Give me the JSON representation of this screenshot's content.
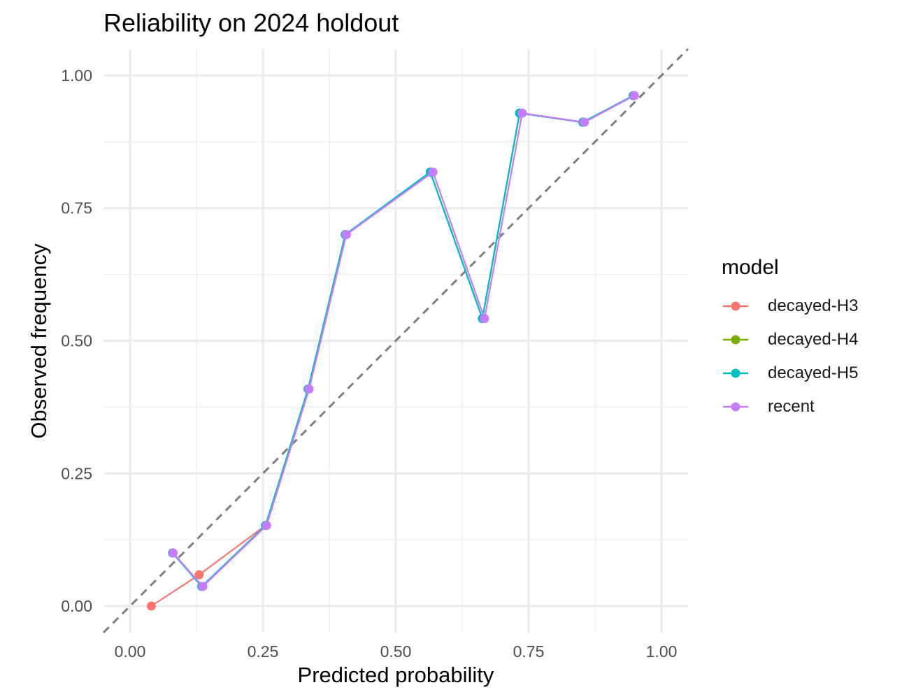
{
  "chart_data": {
    "type": "line",
    "title": "Reliability on 2024 holdout",
    "xlabel": "Predicted probability",
    "ylabel": "Observed frequency",
    "xlim": [
      -0.05,
      1.05
    ],
    "ylim": [
      -0.05,
      1.05
    ],
    "x_ticks": [
      "0.00",
      "0.25",
      "0.50",
      "0.75",
      "1.00"
    ],
    "y_ticks": [
      "0.00",
      "0.25",
      "0.50",
      "0.75",
      "1.00"
    ],
    "grid": true,
    "reference_line": {
      "style": "dashed",
      "color": "#7f7f7f",
      "x": [
        -0.05,
        1.05
      ],
      "y": [
        -0.05,
        1.05
      ]
    },
    "legend": {
      "title": "model",
      "position": "right"
    },
    "series": [
      {
        "name": "decayed-H3",
        "color": "#F8766D",
        "x": [
          0.04,
          0.13,
          0.255,
          0.335,
          0.405,
          0.565,
          0.663,
          0.733,
          0.852,
          0.947
        ],
        "y": [
          0.0,
          0.059,
          0.152,
          0.409,
          0.7,
          0.818,
          0.542,
          0.929,
          0.912,
          0.962
        ]
      },
      {
        "name": "decayed-H4",
        "color": "#7CAE00",
        "x": [
          0.08,
          0.135,
          0.255,
          0.335,
          0.405,
          0.565,
          0.663,
          0.733,
          0.852,
          0.947
        ],
        "y": [
          0.1,
          0.037,
          0.152,
          0.409,
          0.7,
          0.818,
          0.542,
          0.929,
          0.912,
          0.962
        ]
      },
      {
        "name": "decayed-H5",
        "color": "#00BFC4",
        "x": [
          0.08,
          0.135,
          0.255,
          0.335,
          0.405,
          0.565,
          0.663,
          0.733,
          0.852,
          0.947
        ],
        "y": [
          0.1,
          0.037,
          0.152,
          0.409,
          0.7,
          0.818,
          0.542,
          0.929,
          0.912,
          0.962
        ]
      },
      {
        "name": "recent",
        "color": "#C77CFF",
        "x": [
          0.081,
          0.137,
          0.257,
          0.337,
          0.407,
          0.57,
          0.667,
          0.738,
          0.855,
          0.949
        ],
        "y": [
          0.1,
          0.037,
          0.152,
          0.409,
          0.7,
          0.818,
          0.542,
          0.929,
          0.912,
          0.962
        ]
      }
    ]
  }
}
